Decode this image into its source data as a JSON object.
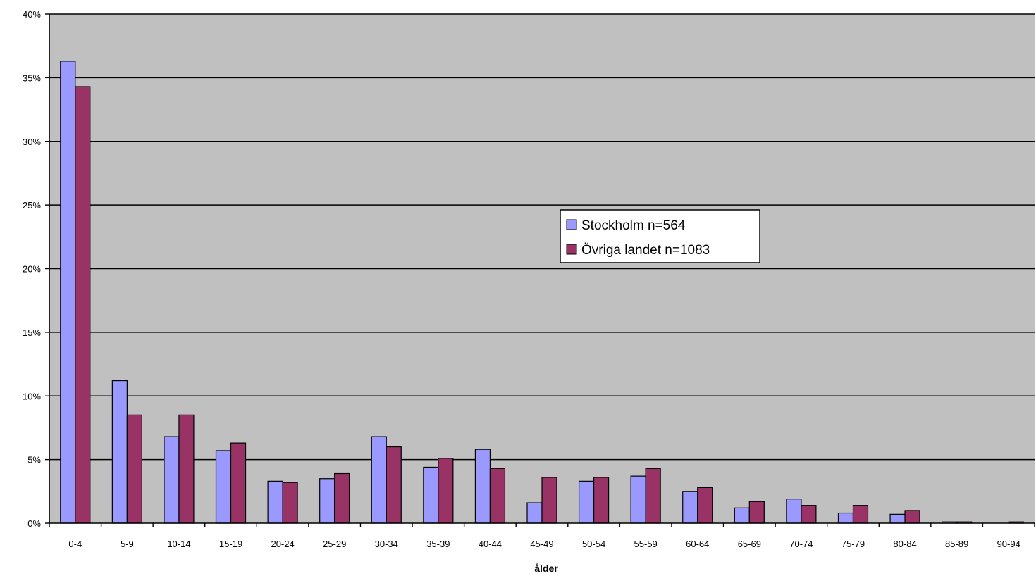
{
  "chart_data": {
    "type": "bar",
    "title": "",
    "xlabel": "ålder",
    "ylabel": "",
    "categories": [
      "0-4",
      "5-9",
      "10-14",
      "15-19",
      "20-24",
      "25-29",
      "30-34",
      "35-39",
      "40-44",
      "45-49",
      "50-54",
      "55-59",
      "60-64",
      "65-69",
      "70-74",
      "75-79",
      "80-84",
      "85-89",
      "90-94"
    ],
    "series": [
      {
        "name": "Stockholm n=564",
        "color": "#9999ff",
        "values": [
          36.3,
          11.2,
          6.8,
          5.7,
          3.3,
          3.5,
          6.8,
          4.4,
          5.8,
          1.6,
          3.3,
          3.7,
          2.5,
          1.2,
          1.9,
          0.8,
          0.7,
          0.1,
          0.0
        ]
      },
      {
        "name": "Övriga landet n=1083",
        "color": "#993366",
        "values": [
          34.3,
          8.5,
          8.5,
          6.3,
          3.2,
          3.9,
          6.0,
          5.1,
          4.3,
          3.6,
          3.6,
          4.3,
          2.8,
          1.7,
          1.4,
          1.4,
          1.0,
          0.1,
          0.1
        ]
      }
    ],
    "ylim": [
      0,
      40
    ],
    "yticks": [
      0,
      5,
      10,
      15,
      20,
      25,
      30,
      35,
      40
    ],
    "ytick_labels": [
      "0%",
      "5%",
      "10%",
      "15%",
      "20%",
      "25%",
      "30%",
      "35%",
      "40%"
    ],
    "grid": true,
    "plot_background": "#c0c0c0",
    "legend_placement": "center-right"
  }
}
